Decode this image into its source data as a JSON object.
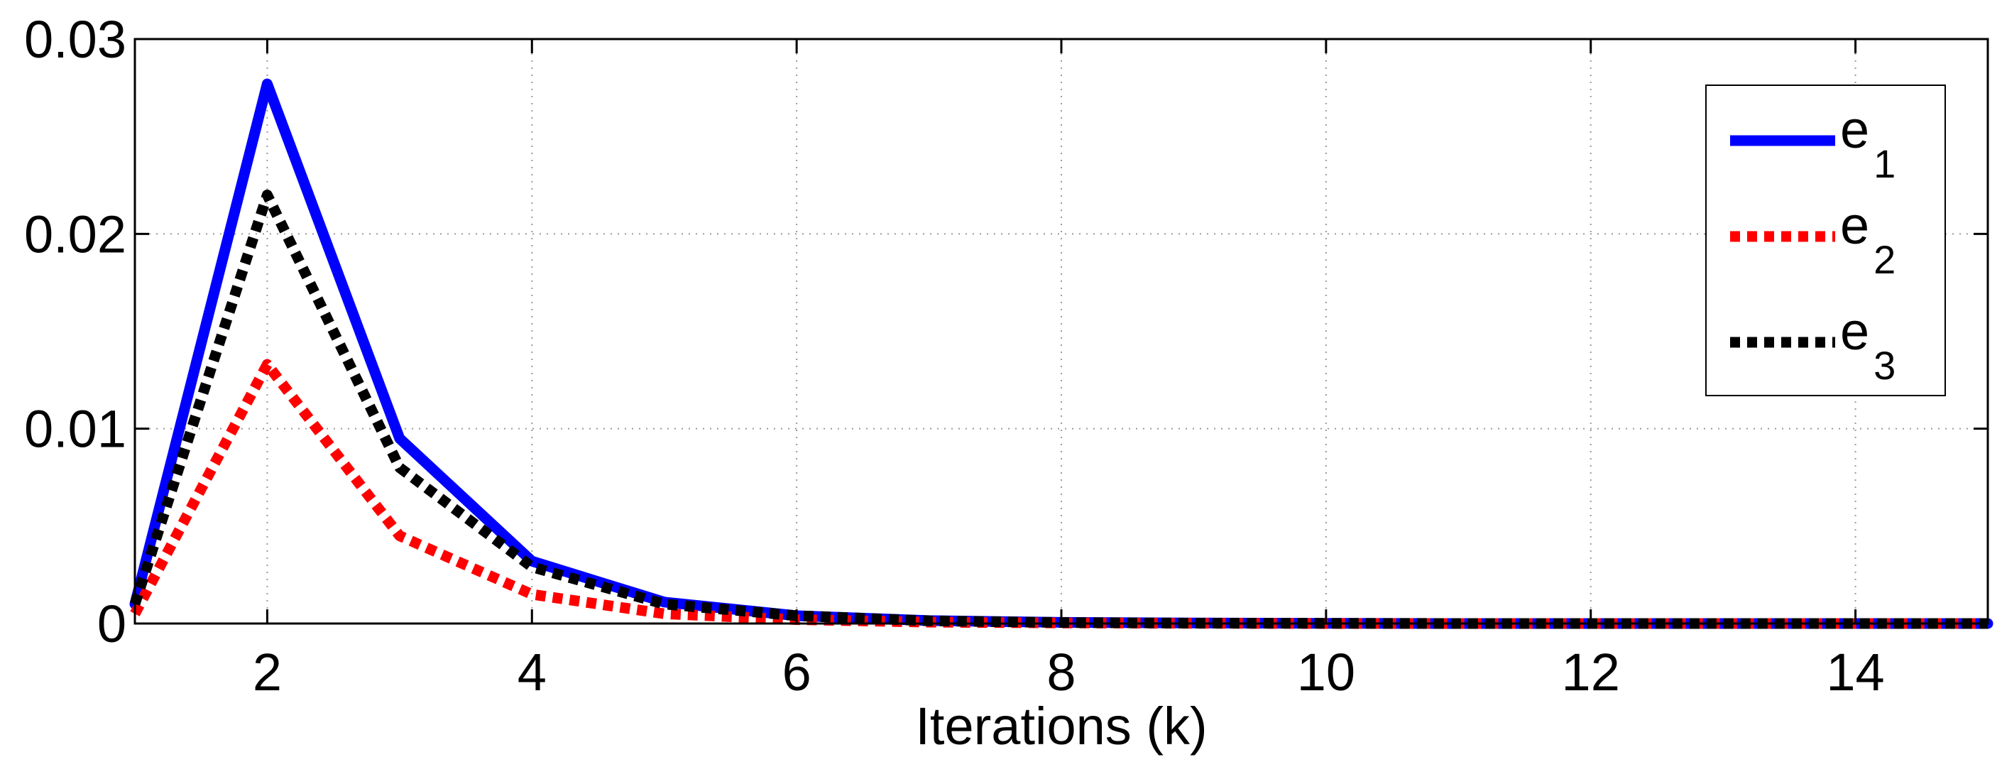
{
  "chart_data": {
    "type": "line",
    "title": "",
    "xlabel": "Iterations (k)",
    "ylabel": "",
    "xlim": [
      1,
      15
    ],
    "ylim": [
      0,
      0.03
    ],
    "x_ticks": [
      2,
      4,
      6,
      8,
      10,
      12,
      14
    ],
    "x_tick_labels": [
      "2",
      "4",
      "6",
      "8",
      "10",
      "12",
      "14"
    ],
    "y_ticks": [
      0,
      0.01,
      0.02,
      0.03
    ],
    "y_tick_labels": [
      "0",
      "0.01",
      "0.02",
      "0.03"
    ],
    "grid": true,
    "legend_position": "top-right",
    "x": [
      1,
      2,
      3,
      4,
      5,
      6,
      7,
      8,
      9,
      10,
      11,
      12,
      13,
      14,
      15
    ],
    "series": [
      {
        "name": "e",
        "subscript": "1",
        "color": "#0000ff",
        "style": "solid",
        "values": [
          0.001,
          0.0277,
          0.0095,
          0.0032,
          0.0011,
          0.0004,
          0.00015,
          6e-05,
          3e-05,
          1e-05,
          0.0,
          0.0,
          0.0,
          0.0,
          0.0
        ]
      },
      {
        "name": "e",
        "subscript": "2",
        "color": "#ff0000",
        "style": "dotted",
        "values": [
          0.0005,
          0.0133,
          0.0045,
          0.0015,
          0.0005,
          0.0002,
          7e-05,
          3e-05,
          1e-05,
          0.0,
          0.0,
          0.0,
          0.0,
          0.0,
          0.0
        ]
      },
      {
        "name": "e",
        "subscript": "3",
        "color": "#000000",
        "style": "dotted",
        "values": [
          0.001,
          0.022,
          0.008,
          0.0029,
          0.001,
          0.0004,
          0.00014,
          5e-05,
          2e-05,
          1e-05,
          0.0,
          0.0,
          0.0,
          0.0,
          0.0
        ]
      }
    ]
  }
}
